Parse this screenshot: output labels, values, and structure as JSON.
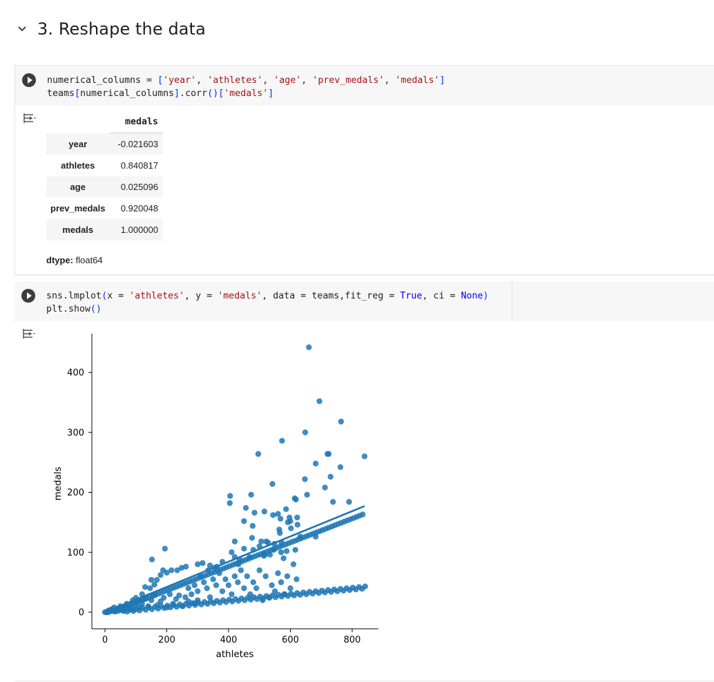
{
  "section": {
    "title": "3. Reshape the data",
    "icon": "chevron-down-icon"
  },
  "cell1": {
    "code_lines": [
      [
        [
          "",
          "numerical_columns = "
        ],
        [
          "b",
          "["
        ],
        [
          "s",
          "'year'"
        ],
        [
          "",
          ", "
        ],
        [
          "s",
          "'athletes'"
        ],
        [
          "",
          ", "
        ],
        [
          "s",
          "'age'"
        ],
        [
          "",
          ", "
        ],
        [
          "s",
          "'prev_medals'"
        ],
        [
          "",
          ", "
        ],
        [
          "s",
          "'medals'"
        ],
        [
          "b",
          "]"
        ]
      ],
      [
        [
          "",
          "teams"
        ],
        [
          "b",
          "["
        ],
        [
          "",
          "numerical_columns"
        ],
        [
          "b",
          "]"
        ],
        [
          "",
          ".corr"
        ],
        [
          "b",
          "()"
        ],
        [
          "b",
          "["
        ],
        [
          "s",
          "'medals'"
        ],
        [
          "b",
          "]"
        ]
      ]
    ],
    "table": {
      "column": "medals",
      "rows": [
        {
          "label": "year",
          "value": "-0.021603"
        },
        {
          "label": "athletes",
          "value": "0.840817"
        },
        {
          "label": "age",
          "value": "0.025096"
        },
        {
          "label": "prev_medals",
          "value": "0.920048"
        },
        {
          "label": "medals",
          "value": "1.000000"
        }
      ]
    },
    "dtype_label": "dtype:",
    "dtype_value": "float64"
  },
  "cell2": {
    "code_lines": [
      [
        [
          "",
          "sns.lmplot"
        ],
        [
          "b",
          "("
        ],
        [
          "",
          "x = "
        ],
        [
          "s",
          "'athletes'"
        ],
        [
          "",
          ", y = "
        ],
        [
          "s",
          "'medals'"
        ],
        [
          "",
          ", data = teams,fit_reg = "
        ],
        [
          "k",
          "True"
        ],
        [
          "",
          ", ci = "
        ],
        [
          "k",
          "None"
        ],
        [
          "b",
          ")"
        ]
      ],
      [
        [
          "",
          "plt.show"
        ],
        [
          "b",
          "()"
        ]
      ]
    ]
  },
  "chart_data": {
    "type": "scatter",
    "xlabel": "athletes",
    "ylabel": "medals",
    "xlim": [
      -20,
      885
    ],
    "ylim": [
      -27,
      462
    ],
    "xticks": [
      0,
      200,
      400,
      600,
      800
    ],
    "yticks": [
      0,
      100,
      200,
      300,
      400
    ],
    "grid": false,
    "point_color": "#1f77b4",
    "regression_line": {
      "x": [
        0,
        840
      ],
      "y": [
        0,
        177
      ]
    },
    "points": [
      [
        660,
        442
      ],
      [
        694,
        352
      ],
      [
        764,
        318
      ],
      [
        648,
        300
      ],
      [
        573,
        286
      ],
      [
        496,
        264
      ],
      [
        720,
        264
      ],
      [
        724,
        264
      ],
      [
        840,
        260
      ],
      [
        682,
        248
      ],
      [
        762,
        242
      ],
      [
        730,
        226
      ],
      [
        647,
        222
      ],
      [
        542,
        214
      ],
      [
        712,
        208
      ],
      [
        654,
        196
      ],
      [
        473,
        196
      ],
      [
        405,
        194
      ],
      [
        614,
        190
      ],
      [
        618,
        188
      ],
      [
        404,
        182
      ],
      [
        738,
        184
      ],
      [
        790,
        184
      ],
      [
        456,
        174
      ],
      [
        484,
        166
      ],
      [
        516,
        168
      ],
      [
        560,
        164
      ],
      [
        544,
        162
      ],
      [
        586,
        172
      ],
      [
        597,
        158
      ],
      [
        568,
        156
      ],
      [
        622,
        158
      ],
      [
        600,
        152
      ],
      [
        450,
        152
      ],
      [
        592,
        150
      ],
      [
        478,
        144
      ],
      [
        564,
        138
      ],
      [
        623,
        146
      ],
      [
        602,
        140
      ],
      [
        566,
        132
      ],
      [
        632,
        126
      ],
      [
        682,
        126
      ],
      [
        506,
        118
      ],
      [
        420,
        118
      ],
      [
        476,
        124
      ],
      [
        522,
        118
      ],
      [
        528,
        116
      ],
      [
        548,
        114
      ],
      [
        572,
        116
      ],
      [
        500,
        110
      ],
      [
        450,
        106
      ],
      [
        194,
        106
      ],
      [
        480,
        104
      ],
      [
        546,
        104
      ],
      [
        588,
        102
      ],
      [
        534,
        96
      ],
      [
        570,
        100
      ],
      [
        616,
        104
      ],
      [
        410,
        100
      ],
      [
        420,
        92
      ],
      [
        436,
        88
      ],
      [
        468,
        92
      ],
      [
        514,
        94
      ],
      [
        518,
        96
      ],
      [
        578,
        90
      ],
      [
        152,
        88
      ],
      [
        432,
        80
      ],
      [
        380,
        84
      ],
      [
        362,
        76
      ],
      [
        354,
        74
      ],
      [
        334,
        70
      ],
      [
        340,
        78
      ],
      [
        316,
        82
      ],
      [
        300,
        80
      ],
      [
        262,
        76
      ],
      [
        248,
        74
      ],
      [
        234,
        70
      ],
      [
        215,
        70
      ],
      [
        200,
        66
      ],
      [
        188,
        70
      ],
      [
        180,
        62
      ],
      [
        168,
        54
      ],
      [
        160,
        46
      ],
      [
        150,
        54
      ],
      [
        146,
        40
      ],
      [
        130,
        42
      ],
      [
        120,
        30
      ],
      [
        110,
        20
      ],
      [
        100,
        24
      ],
      [
        90,
        20
      ],
      [
        80,
        12
      ],
      [
        70,
        14
      ],
      [
        60,
        8
      ],
      [
        50,
        6
      ],
      [
        40,
        4
      ],
      [
        30,
        2
      ],
      [
        20,
        2
      ],
      [
        10,
        0
      ],
      [
        5,
        0
      ],
      [
        0,
        0
      ],
      [
        14,
        1
      ],
      [
        24,
        3
      ],
      [
        34,
        3
      ],
      [
        44,
        5
      ],
      [
        54,
        7
      ],
      [
        64,
        9
      ],
      [
        74,
        11
      ],
      [
        84,
        13
      ],
      [
        94,
        15
      ],
      [
        104,
        17
      ],
      [
        114,
        19
      ],
      [
        124,
        21
      ],
      [
        134,
        23
      ],
      [
        144,
        25
      ],
      [
        154,
        27
      ],
      [
        164,
        29
      ],
      [
        174,
        31
      ],
      [
        184,
        33
      ],
      [
        194,
        35
      ],
      [
        204,
        37
      ],
      [
        214,
        39
      ],
      [
        224,
        41
      ],
      [
        234,
        43
      ],
      [
        244,
        45
      ],
      [
        254,
        47
      ],
      [
        264,
        49
      ],
      [
        274,
        51
      ],
      [
        284,
        53
      ],
      [
        294,
        55
      ],
      [
        304,
        57
      ],
      [
        314,
        59
      ],
      [
        324,
        61
      ],
      [
        334,
        63
      ],
      [
        344,
        65
      ],
      [
        354,
        67
      ],
      [
        364,
        69
      ],
      [
        374,
        71
      ],
      [
        384,
        73
      ],
      [
        394,
        75
      ],
      [
        404,
        77
      ],
      [
        414,
        79
      ],
      [
        424,
        81
      ],
      [
        434,
        83
      ],
      [
        444,
        85
      ],
      [
        454,
        87
      ],
      [
        464,
        89
      ],
      [
        474,
        91
      ],
      [
        484,
        93
      ],
      [
        494,
        95
      ],
      [
        504,
        97
      ],
      [
        514,
        99
      ],
      [
        524,
        101
      ],
      [
        534,
        103
      ],
      [
        544,
        105
      ],
      [
        554,
        107
      ],
      [
        564,
        109
      ],
      [
        574,
        111
      ],
      [
        584,
        113
      ],
      [
        594,
        115
      ],
      [
        604,
        117
      ],
      [
        614,
        119
      ],
      [
        624,
        121
      ],
      [
        634,
        123
      ],
      [
        644,
        125
      ],
      [
        654,
        127
      ],
      [
        664,
        129
      ],
      [
        674,
        131
      ],
      [
        684,
        133
      ],
      [
        694,
        135
      ],
      [
        704,
        137
      ],
      [
        714,
        139
      ],
      [
        724,
        141
      ],
      [
        734,
        143
      ],
      [
        744,
        145
      ],
      [
        754,
        147
      ],
      [
        764,
        149
      ],
      [
        774,
        151
      ],
      [
        784,
        153
      ],
      [
        794,
        155
      ],
      [
        804,
        157
      ],
      [
        814,
        159
      ],
      [
        824,
        161
      ],
      [
        834,
        163
      ],
      [
        270,
        40
      ],
      [
        280,
        30
      ],
      [
        290,
        45
      ],
      [
        300,
        35
      ],
      [
        310,
        60
      ],
      [
        320,
        50
      ],
      [
        330,
        40
      ],
      [
        340,
        25
      ],
      [
        350,
        55
      ],
      [
        360,
        45
      ],
      [
        370,
        65
      ],
      [
        380,
        35
      ],
      [
        390,
        55
      ],
      [
        400,
        45
      ],
      [
        410,
        30
      ],
      [
        420,
        60
      ],
      [
        430,
        50
      ],
      [
        440,
        70
      ],
      [
        450,
        40
      ],
      [
        460,
        60
      ],
      [
        470,
        30
      ],
      [
        480,
        50
      ],
      [
        490,
        40
      ],
      [
        500,
        70
      ],
      [
        510,
        20
      ],
      [
        520,
        60
      ],
      [
        530,
        25
      ],
      [
        540,
        45
      ],
      [
        550,
        35
      ],
      [
        560,
        65
      ],
      [
        570,
        50
      ],
      [
        580,
        30
      ],
      [
        590,
        60
      ],
      [
        600,
        40
      ],
      [
        610,
        80
      ],
      [
        620,
        55
      ],
      [
        300,
        20
      ],
      [
        290,
        15
      ],
      [
        270,
        18
      ],
      [
        260,
        25
      ],
      [
        250,
        10
      ],
      [
        240,
        28
      ],
      [
        230,
        22
      ],
      [
        220,
        14
      ],
      [
        210,
        30
      ],
      [
        200,
        8
      ],
      [
        190,
        24
      ],
      [
        180,
        18
      ],
      [
        170,
        12
      ],
      [
        160,
        28
      ],
      [
        150,
        20
      ],
      [
        140,
        10
      ],
      [
        130,
        22
      ],
      [
        120,
        14
      ],
      [
        110,
        8
      ],
      [
        100,
        12
      ],
      [
        90,
        6
      ],
      [
        80,
        4
      ],
      [
        70,
        8
      ],
      [
        60,
        2
      ],
      [
        50,
        10
      ],
      [
        40,
        6
      ],
      [
        30,
        8
      ],
      [
        20,
        4
      ],
      [
        10,
        2
      ],
      [
        12,
        3
      ],
      [
        22,
        5
      ],
      [
        32,
        1
      ],
      [
        42,
        2
      ],
      [
        52,
        4
      ],
      [
        62,
        3
      ],
      [
        72,
        1
      ],
      [
        82,
        6
      ],
      [
        92,
        2
      ],
      [
        102,
        5
      ],
      [
        112,
        3
      ],
      [
        122,
        7
      ],
      [
        132,
        4
      ],
      [
        142,
        8
      ],
      [
        152,
        5
      ],
      [
        162,
        9
      ],
      [
        172,
        6
      ],
      [
        182,
        10
      ],
      [
        192,
        7
      ],
      [
        202,
        11
      ],
      [
        212,
        8
      ],
      [
        222,
        12
      ],
      [
        232,
        9
      ],
      [
        242,
        13
      ],
      [
        252,
        10
      ],
      [
        262,
        14
      ],
      [
        272,
        11
      ],
      [
        282,
        15
      ],
      [
        292,
        12
      ],
      [
        302,
        16
      ],
      [
        312,
        13
      ],
      [
        322,
        17
      ],
      [
        332,
        14
      ],
      [
        342,
        18
      ],
      [
        352,
        15
      ],
      [
        362,
        19
      ],
      [
        372,
        16
      ],
      [
        382,
        20
      ],
      [
        392,
        17
      ],
      [
        402,
        21
      ],
      [
        412,
        18
      ],
      [
        422,
        22
      ],
      [
        432,
        19
      ],
      [
        442,
        23
      ],
      [
        452,
        20
      ],
      [
        462,
        24
      ],
      [
        472,
        21
      ],
      [
        482,
        25
      ],
      [
        492,
        22
      ],
      [
        502,
        26
      ],
      [
        512,
        23
      ],
      [
        522,
        27
      ],
      [
        532,
        24
      ],
      [
        542,
        28
      ],
      [
        552,
        25
      ],
      [
        562,
        29
      ],
      [
        572,
        26
      ],
      [
        582,
        30
      ],
      [
        592,
        27
      ],
      [
        602,
        31
      ],
      [
        612,
        28
      ],
      [
        622,
        32
      ],
      [
        632,
        29
      ],
      [
        642,
        33
      ],
      [
        652,
        30
      ],
      [
        662,
        34
      ],
      [
        672,
        31
      ],
      [
        682,
        35
      ],
      [
        692,
        32
      ],
      [
        702,
        36
      ],
      [
        712,
        33
      ],
      [
        722,
        37
      ],
      [
        732,
        34
      ],
      [
        742,
        38
      ],
      [
        752,
        35
      ],
      [
        762,
        39
      ],
      [
        772,
        36
      ],
      [
        782,
        40
      ],
      [
        792,
        37
      ],
      [
        802,
        41
      ],
      [
        812,
        38
      ],
      [
        822,
        42
      ],
      [
        832,
        39
      ],
      [
        842,
        43
      ]
    ]
  }
}
